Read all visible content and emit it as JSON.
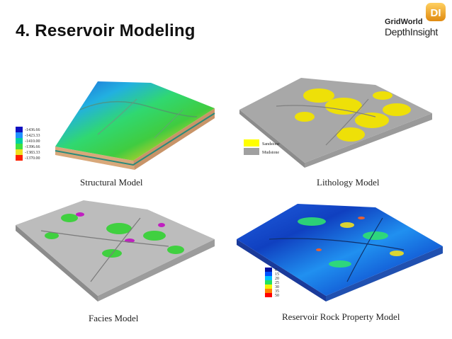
{
  "slide": {
    "title": "4. Reservoir Modeling"
  },
  "brand": {
    "name_top": "GridWorld",
    "name_bottom": "DepthInsight",
    "logo_letters": "DI",
    "accent": "#f0a020"
  },
  "panels": {
    "structural": {
      "caption": "Structural Model",
      "legend": [
        "-1436.66",
        "-1423.33",
        "-1410.00",
        "-1396.66",
        "-1383.33",
        "-1370.00"
      ],
      "legend_colors": [
        "#1010c0",
        "#2090ff",
        "#00d0a0",
        "#40e040",
        "#f0e020",
        "#ff2000"
      ]
    },
    "lithology": {
      "caption": "Lithology Model",
      "legend": [
        "Sandstone",
        "Mudstone"
      ],
      "legend_colors": [
        "#ffff00",
        "#a0a0a0"
      ]
    },
    "facies": {
      "caption": "Facies Model"
    },
    "property": {
      "caption": "Reservoir Rock Property Model",
      "legend": [
        "0",
        "15",
        "20",
        "25",
        "30",
        "35",
        "50"
      ],
      "legend_colors": [
        "#0010a0",
        "#0050ff",
        "#00c0ff",
        "#20e060",
        "#f0f000",
        "#ff8000",
        "#ff0000"
      ]
    }
  }
}
